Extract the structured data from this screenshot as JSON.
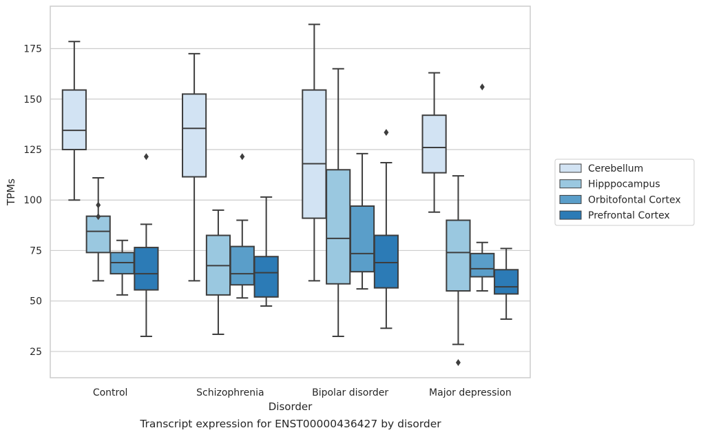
{
  "caption": "Transcript expression for ENST00000436427 by disorder",
  "chart_data": {
    "type": "boxplot",
    "title": "",
    "xlabel": "Disorder",
    "ylabel": "TPMs",
    "ylim": [
      12,
      196
    ],
    "yticks": [
      25,
      50,
      75,
      100,
      125,
      150,
      175
    ],
    "grid": "horizontal",
    "legend_position": "right",
    "categories": [
      "Control",
      "Schizophrenia",
      "Bipolar disorder",
      "Major depression"
    ],
    "series": [
      {
        "name": "Cerebellum",
        "color": "#d2e3f3",
        "boxes": [
          {
            "whislo": 100,
            "q1": 125,
            "med": 134.5,
            "q3": 154.5,
            "whishi": 178.5,
            "fliers": []
          },
          {
            "whislo": 60,
            "q1": 111.5,
            "med": 135.5,
            "q3": 152.5,
            "whishi": 172.5,
            "fliers": []
          },
          {
            "whislo": 60,
            "q1": 91,
            "med": 118,
            "q3": 154.5,
            "whishi": 187,
            "fliers": []
          },
          {
            "whislo": 94,
            "q1": 113.5,
            "med": 126,
            "q3": 142,
            "whishi": 163,
            "fliers": []
          }
        ]
      },
      {
        "name": "Hipppocampus",
        "color": "#9ac8e0",
        "boxes": [
          {
            "whislo": 60,
            "q1": 74,
            "med": 84.5,
            "q3": 92,
            "whishi": 111,
            "fliers": [
              97.5,
              91.8
            ]
          },
          {
            "whislo": 33.5,
            "q1": 53,
            "med": 67.5,
            "q3": 82.5,
            "whishi": 95,
            "fliers": []
          },
          {
            "whislo": 32.5,
            "q1": 58.5,
            "med": 81,
            "q3": 115,
            "whishi": 165,
            "fliers": []
          },
          {
            "whislo": 28.5,
            "q1": 55,
            "med": 74,
            "q3": 90,
            "whishi": 112,
            "fliers": [
              19.5
            ]
          }
        ]
      },
      {
        "name": "Orbitofontal Cortex",
        "color": "#5a9ec9",
        "boxes": [
          {
            "whislo": 53,
            "q1": 63.5,
            "med": 69,
            "q3": 74,
            "whishi": 80,
            "fliers": []
          },
          {
            "whislo": 51.5,
            "q1": 58,
            "med": 63.5,
            "q3": 77,
            "whishi": 90,
            "fliers": [
              121.5
            ]
          },
          {
            "whislo": 56,
            "q1": 64.5,
            "med": 73.5,
            "q3": 97,
            "whishi": 123,
            "fliers": []
          },
          {
            "whislo": 55,
            "q1": 62,
            "med": 66,
            "q3": 73.5,
            "whishi": 79,
            "fliers": [
              156
            ]
          }
        ]
      },
      {
        "name": "Prefrontal Cortex",
        "color": "#2c7bb6",
        "boxes": [
          {
            "whislo": 32.5,
            "q1": 55.5,
            "med": 63.5,
            "q3": 76.5,
            "whishi": 88,
            "fliers": [
              121.5
            ]
          },
          {
            "whislo": 47.5,
            "q1": 52,
            "med": 64,
            "q3": 72,
            "whishi": 101.5,
            "fliers": []
          },
          {
            "whislo": 36.5,
            "q1": 56.5,
            "med": 69,
            "q3": 82.5,
            "whishi": 118.5,
            "fliers": [
              133.5
            ]
          },
          {
            "whislo": 41,
            "q1": 53.5,
            "med": 57,
            "q3": 65.5,
            "whishi": 76,
            "fliers": []
          }
        ]
      }
    ]
  }
}
